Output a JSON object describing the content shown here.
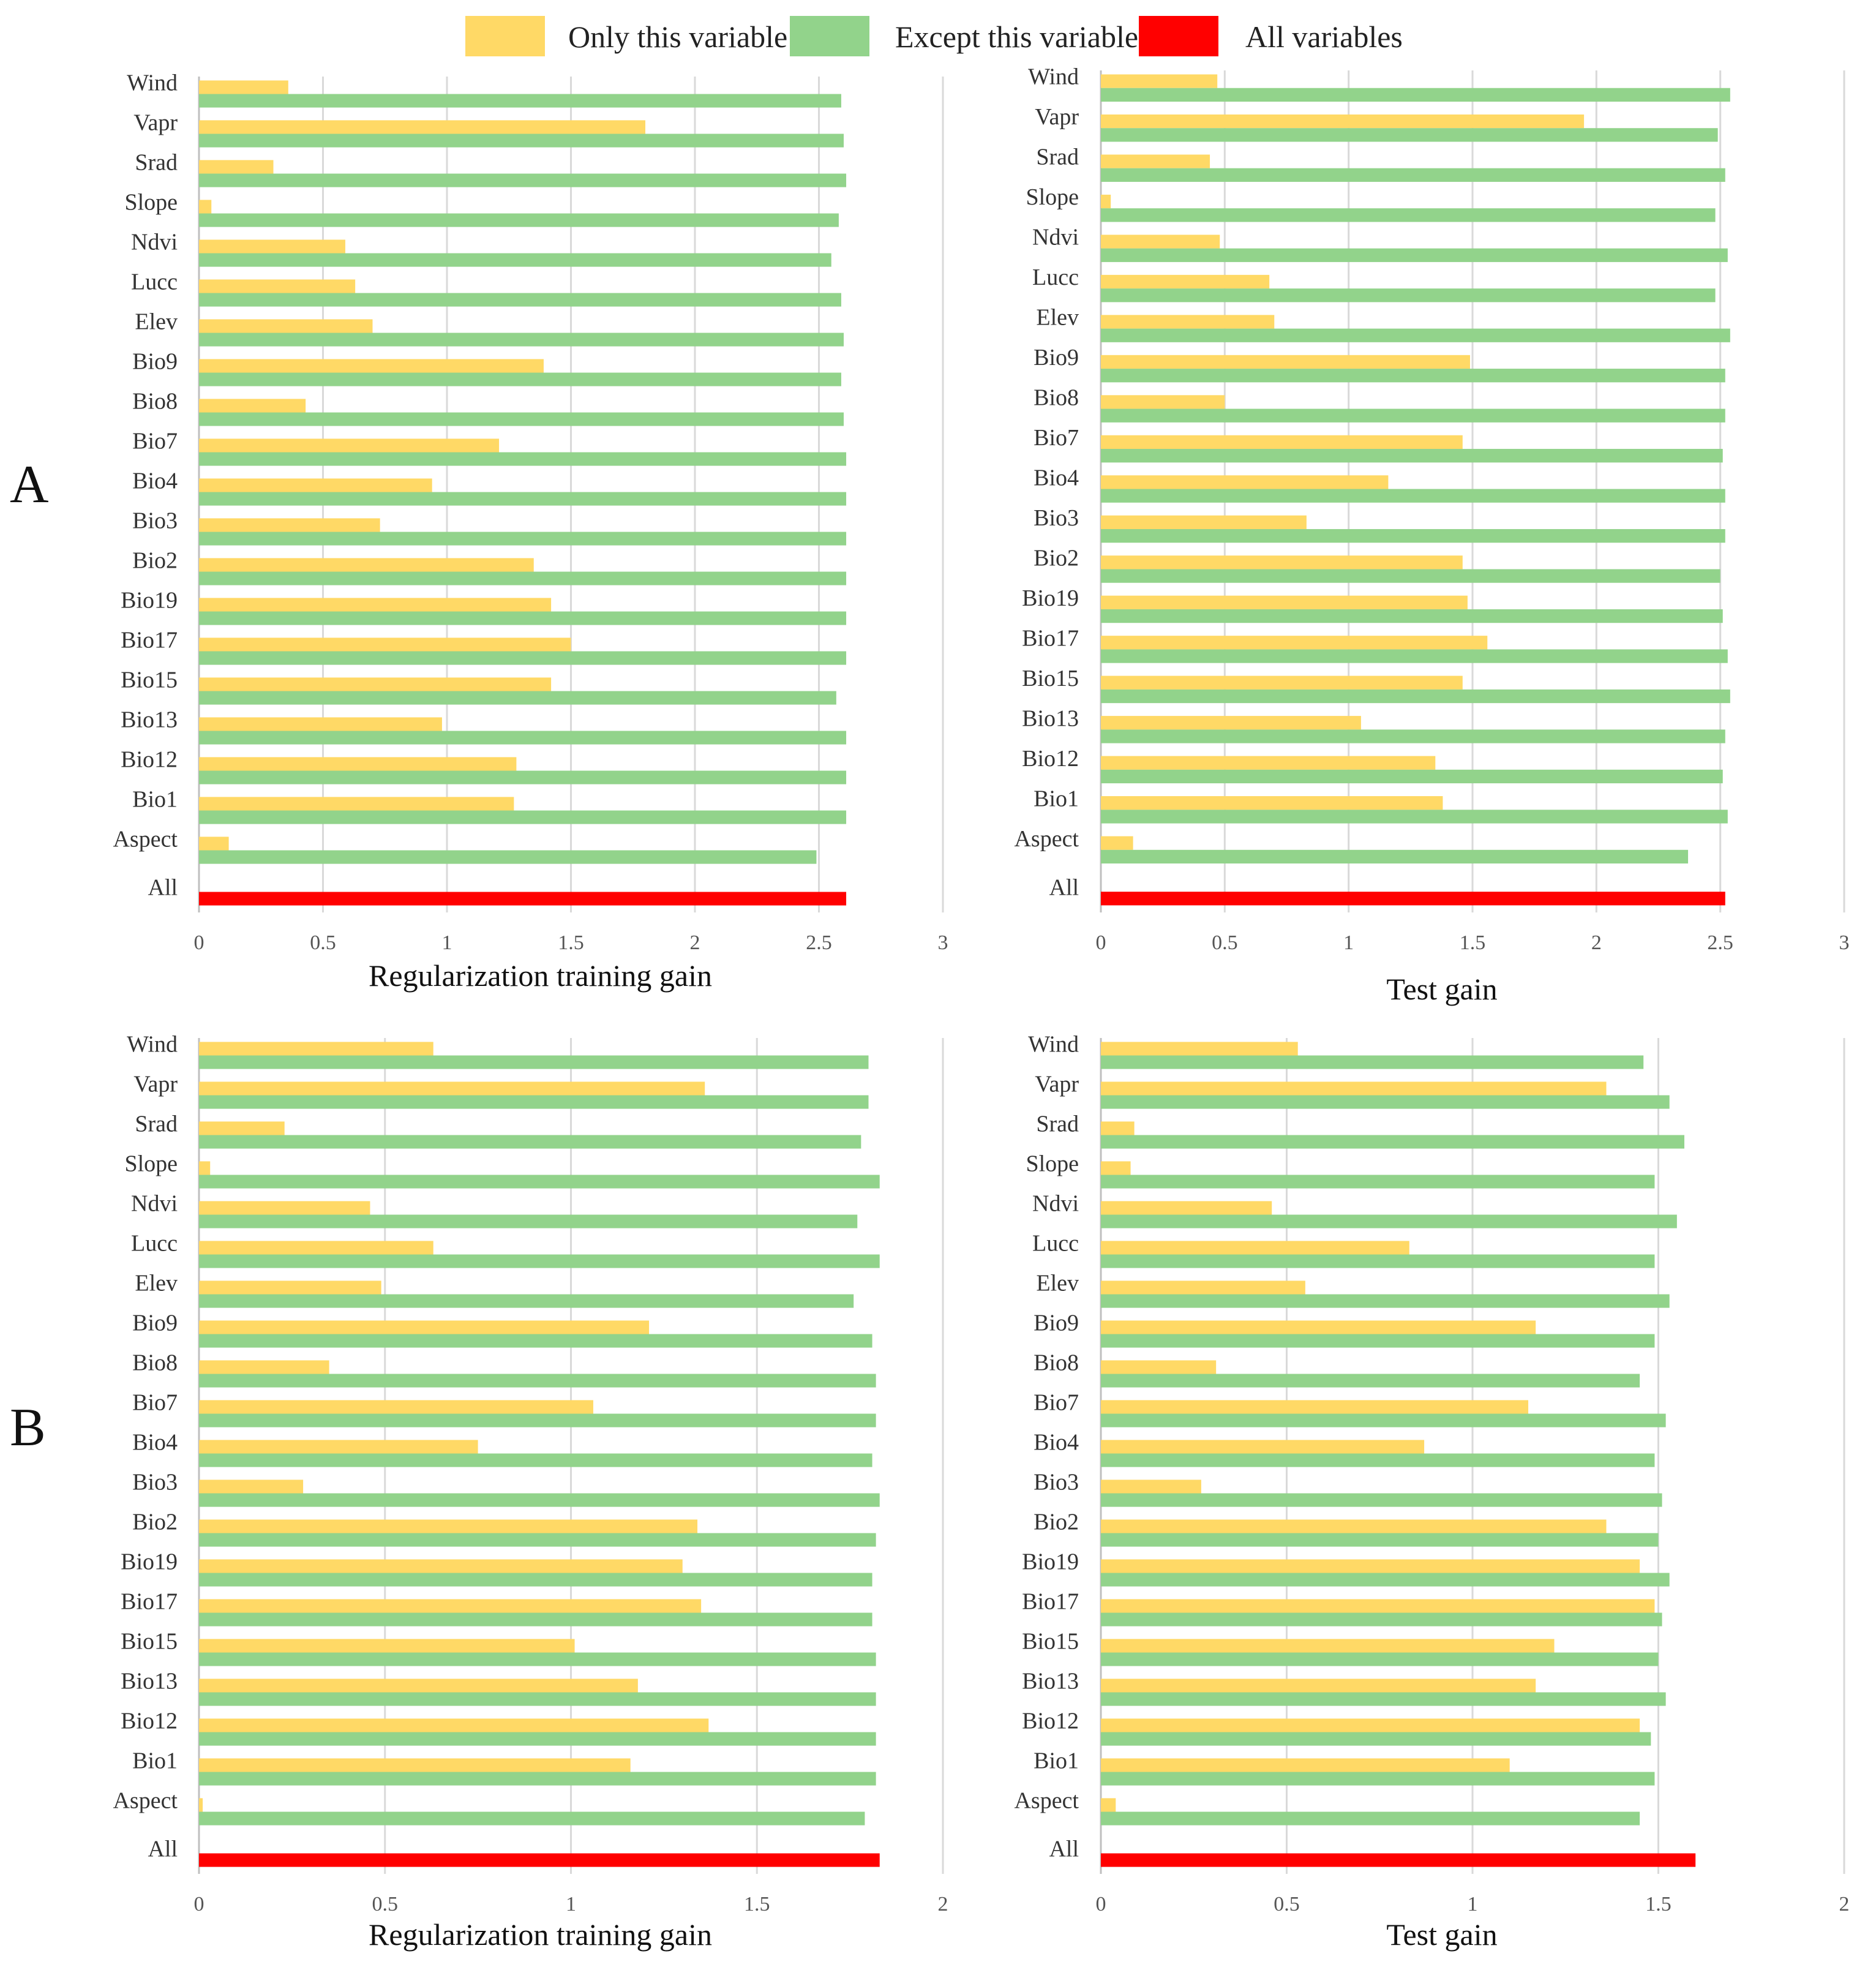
{
  "legend": {
    "only": {
      "label": "Only this variable",
      "color": "#FFD966"
    },
    "except": {
      "label": "Except this variable",
      "color": "#92D38B"
    },
    "all": {
      "label": "All variables",
      "color": "#FF0000"
    }
  },
  "panels": {
    "A": "A",
    "B": "B"
  },
  "chart_data": [
    {
      "id": "A-train",
      "type": "bar",
      "orientation": "horizontal",
      "xlabel": "Regularization training gain",
      "ylabel": "",
      "xlim": [
        0,
        3
      ],
      "xticks": [
        "0",
        "0.5",
        "1",
        "1.5",
        "2",
        "2.5",
        "3"
      ],
      "categories": [
        "Wind",
        "Vapr",
        "Srad",
        "Slope",
        "Ndvi",
        "Lucc",
        "Elev",
        "Bio9",
        "Bio8",
        "Bio7",
        "Bio4",
        "Bio3",
        "Bio2",
        "Bio19",
        "Bio17",
        "Bio15",
        "Bio13",
        "Bio12",
        "Bio1",
        "Aspect"
      ],
      "series": [
        {
          "name": "Only this variable",
          "values": [
            0.36,
            1.8,
            0.3,
            0.05,
            0.59,
            0.63,
            0.7,
            1.39,
            0.43,
            1.21,
            0.94,
            0.73,
            1.35,
            1.42,
            1.5,
            1.42,
            0.98,
            1.28,
            1.27,
            0.12
          ]
        },
        {
          "name": "Except this variable",
          "values": [
            2.59,
            2.6,
            2.61,
            2.58,
            2.55,
            2.59,
            2.6,
            2.59,
            2.6,
            2.61,
            2.61,
            2.61,
            2.61,
            2.61,
            2.61,
            2.57,
            2.61,
            2.61,
            2.61,
            2.49
          ]
        }
      ],
      "all_label": "All",
      "all_value": 2.61
    },
    {
      "id": "A-test",
      "type": "bar",
      "orientation": "horizontal",
      "xlabel": "Test gain",
      "ylabel": "",
      "xlim": [
        0,
        3
      ],
      "xticks": [
        "0",
        "0.5",
        "1",
        "1.5",
        "2",
        "2.5",
        "3"
      ],
      "categories": [
        "Wind",
        "Vapr",
        "Srad",
        "Slope",
        "Ndvi",
        "Lucc",
        "Elev",
        "Bio9",
        "Bio8",
        "Bio7",
        "Bio4",
        "Bio3",
        "Bio2",
        "Bio19",
        "Bio17",
        "Bio15",
        "Bio13",
        "Bio12",
        "Bio1",
        "Aspect"
      ],
      "series": [
        {
          "name": "Only this variable",
          "values": [
            0.47,
            1.95,
            0.44,
            0.04,
            0.48,
            0.68,
            0.7,
            1.49,
            0.5,
            1.46,
            1.16,
            0.83,
            1.46,
            1.48,
            1.56,
            1.46,
            1.05,
            1.35,
            1.38,
            0.13
          ]
        },
        {
          "name": "Except this variable",
          "values": [
            2.54,
            2.49,
            2.52,
            2.48,
            2.53,
            2.48,
            2.54,
            2.52,
            2.52,
            2.51,
            2.52,
            2.52,
            2.5,
            2.51,
            2.53,
            2.54,
            2.52,
            2.51,
            2.53,
            2.37
          ]
        }
      ],
      "all_label": "All",
      "all_value": 2.52
    },
    {
      "id": "B-train",
      "type": "bar",
      "orientation": "horizontal",
      "xlabel": "Regularization training gain",
      "ylabel": "",
      "xlim": [
        0,
        2
      ],
      "xticks": [
        "0",
        "0.5",
        "1",
        "1.5",
        "2"
      ],
      "categories": [
        "Wind",
        "Vapr",
        "Srad",
        "Slope",
        "Ndvi",
        "Lucc",
        "Elev",
        "Bio9",
        "Bio8",
        "Bio7",
        "Bio4",
        "Bio3",
        "Bio2",
        "Bio19",
        "Bio17",
        "Bio15",
        "Bio13",
        "Bio12",
        "Bio1",
        "Aspect"
      ],
      "series": [
        {
          "name": "Only this variable",
          "values": [
            0.63,
            1.36,
            0.23,
            0.03,
            0.46,
            0.63,
            0.49,
            1.21,
            0.35,
            1.06,
            0.75,
            0.28,
            1.34,
            1.3,
            1.35,
            1.01,
            1.18,
            1.37,
            1.16,
            0.01
          ]
        },
        {
          "name": "Except this variable",
          "values": [
            1.8,
            1.8,
            1.78,
            1.83,
            1.77,
            1.83,
            1.76,
            1.81,
            1.82,
            1.82,
            1.81,
            1.83,
            1.82,
            1.81,
            1.81,
            1.82,
            1.82,
            1.82,
            1.82,
            1.79
          ]
        }
      ],
      "all_label": "All",
      "all_value": 1.83
    },
    {
      "id": "B-test",
      "type": "bar",
      "orientation": "horizontal",
      "xlabel": "Test gain",
      "ylabel": "",
      "xlim": [
        0,
        2
      ],
      "xticks": [
        "0",
        "0.5",
        "1",
        "1.5",
        "2"
      ],
      "categories": [
        "Wind",
        "Vapr",
        "Srad",
        "Slope",
        "Ndvi",
        "Lucc",
        "Elev",
        "Bio9",
        "Bio8",
        "Bio7",
        "Bio4",
        "Bio3",
        "Bio2",
        "Bio19",
        "Bio17",
        "Bio15",
        "Bio13",
        "Bio12",
        "Bio1",
        "Aspect"
      ],
      "series": [
        {
          "name": "Only this variable",
          "values": [
            0.53,
            1.36,
            0.09,
            0.08,
            0.46,
            0.83,
            0.55,
            1.17,
            0.31,
            1.15,
            0.87,
            0.27,
            1.36,
            1.45,
            1.49,
            1.22,
            1.17,
            1.45,
            1.1,
            0.04
          ]
        },
        {
          "name": "Except this variable",
          "values": [
            1.46,
            1.53,
            1.57,
            1.49,
            1.55,
            1.49,
            1.53,
            1.49,
            1.45,
            1.52,
            1.49,
            1.51,
            1.5,
            1.53,
            1.51,
            1.5,
            1.52,
            1.48,
            1.49,
            1.45
          ]
        }
      ],
      "all_label": "All",
      "all_value": 1.6
    }
  ]
}
